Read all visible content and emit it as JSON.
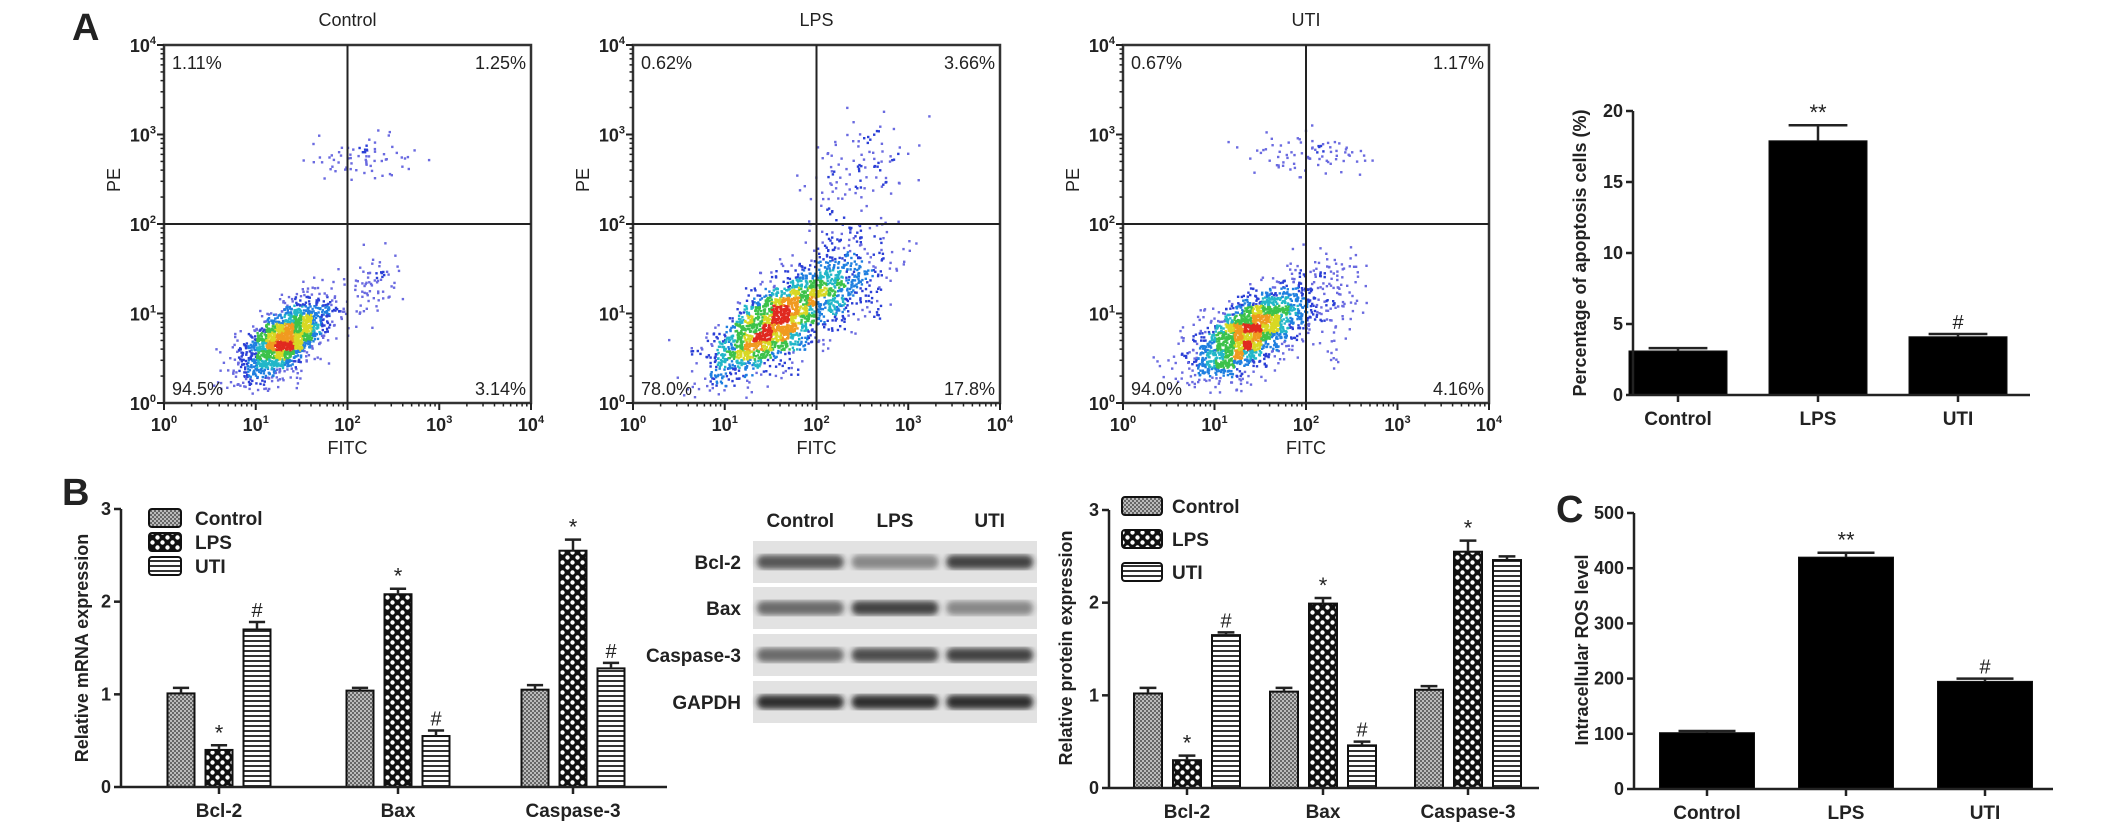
{
  "panel_labels": {
    "a": "A",
    "b": "B",
    "c": "C"
  },
  "colors": {
    "axis": "#222222",
    "bar": "#000000",
    "sparse_dot": "#6a6ae0"
  },
  "chart_data": [
    {
      "type": "scatter",
      "title": "Control",
      "xlabel": "FITC",
      "ylabel": "PE",
      "scale": "log10",
      "xlim_exp": [
        0,
        4
      ],
      "ylim_exp": [
        0,
        4
      ],
      "tick_base": "10",
      "tick_exponents": [
        "0",
        "1",
        "2",
        "3",
        "4"
      ],
      "gate_exp": [
        2,
        2
      ],
      "quadrants": {
        "upper_left": "1.11%",
        "upper_right": "1.25%",
        "lower_left": "94.5%",
        "lower_right": "3.14%"
      },
      "populations": [
        {
          "center": [
            1.3,
            0.72
          ],
          "sd": [
            0.24,
            0.22
          ],
          "rho": 0.6,
          "n": 1700
        },
        {
          "center": [
            2.3,
            1.3
          ],
          "sd": [
            0.15,
            0.2
          ],
          "rho": 0.2,
          "n": 70
        },
        {
          "center": [
            2.1,
            2.75
          ],
          "sd": [
            0.3,
            0.12
          ],
          "rho": 0,
          "n": 70
        }
      ]
    },
    {
      "type": "scatter",
      "title": "LPS",
      "xlabel": "FITC",
      "ylabel": "PE",
      "scale": "log10",
      "xlim_exp": [
        0,
        4
      ],
      "ylim_exp": [
        0,
        4
      ],
      "tick_base": "10",
      "tick_exponents": [
        "0",
        "1",
        "2",
        "3",
        "4"
      ],
      "gate_exp": [
        2,
        2
      ],
      "quadrants": {
        "upper_left": "0.62%",
        "upper_right": "3.66%",
        "lower_left": "78.0%",
        "lower_right": "17.8%"
      },
      "populations": [
        {
          "center": [
            1.55,
            0.9
          ],
          "sd": [
            0.36,
            0.3
          ],
          "rho": 0.7,
          "n": 1900
        },
        {
          "center": [
            2.3,
            1.4
          ],
          "sd": [
            0.25,
            0.3
          ],
          "rho": 0.3,
          "n": 320
        },
        {
          "center": [
            2.45,
            2.6
          ],
          "sd": [
            0.3,
            0.3
          ],
          "rho": 0.3,
          "n": 110
        }
      ]
    },
    {
      "type": "scatter",
      "title": "UTI",
      "xlabel": "FITC",
      "ylabel": "PE",
      "scale": "log10",
      "xlim_exp": [
        0,
        4
      ],
      "ylim_exp": [
        0,
        4
      ],
      "tick_base": "10",
      "tick_exponents": [
        "0",
        "1",
        "2",
        "3",
        "4"
      ],
      "gate_exp": [
        2,
        2
      ],
      "quadrants": {
        "upper_left": "0.67%",
        "upper_right": "1.17%",
        "lower_left": "94.0%",
        "lower_right": "4.16%"
      },
      "populations": [
        {
          "center": [
            1.4,
            0.82
          ],
          "sd": [
            0.32,
            0.26
          ],
          "rho": 0.65,
          "n": 1900
        },
        {
          "center": [
            2.35,
            1.2
          ],
          "sd": [
            0.15,
            0.3
          ],
          "rho": 0.2,
          "n": 90
        },
        {
          "center": [
            2.05,
            2.8
          ],
          "sd": [
            0.33,
            0.12
          ],
          "rho": 0,
          "n": 80
        }
      ]
    },
    {
      "type": "bar",
      "categories": [
        "Control",
        "LPS",
        "UTI"
      ],
      "values": [
        3.1,
        17.9,
        4.1
      ],
      "errors": [
        0.2,
        1.1,
        0.2
      ],
      "annotations": [
        "",
        "**",
        "#"
      ],
      "xlabel": "",
      "ylabel": "Percentage of apoptosis cells (%)",
      "ylim": [
        0,
        20
      ],
      "yticks": [
        "0",
        "5",
        "10",
        "15",
        "20"
      ]
    },
    {
      "type": "bar",
      "categories": [
        "Bcl-2",
        "Bax",
        "Caspase-3"
      ],
      "xlabel": "",
      "ylabel": "Relative mRNA expression",
      "ylim": [
        0,
        3
      ],
      "yticks": [
        "0",
        "1",
        "2",
        "3"
      ],
      "legend": "top-left",
      "series": [
        {
          "name": "Control",
          "values": [
            1.01,
            1.04,
            1.05
          ],
          "errors": [
            0.06,
            0.03,
            0.05
          ],
          "annotations": [
            "",
            "",
            ""
          ]
        },
        {
          "name": "LPS",
          "values": [
            0.4,
            2.08,
            2.55
          ],
          "errors": [
            0.05,
            0.06,
            0.12
          ],
          "annotations": [
            "*",
            "*",
            "*"
          ]
        },
        {
          "name": "UTI",
          "values": [
            1.7,
            0.55,
            1.28
          ],
          "errors": [
            0.08,
            0.06,
            0.06
          ],
          "annotations": [
            "#",
            "#",
            "#"
          ]
        }
      ]
    },
    {
      "type": "bar",
      "categories": [
        "Bcl-2",
        "Bax",
        "Caspase-3"
      ],
      "xlabel": "",
      "ylabel": "Relative protein expression",
      "ylim": [
        0,
        3
      ],
      "yticks": [
        "0",
        "1",
        "2",
        "3"
      ],
      "legend": "top-left",
      "series": [
        {
          "name": "Control",
          "values": [
            1.02,
            1.04,
            1.06
          ],
          "errors": [
            0.06,
            0.04,
            0.04
          ],
          "annotations": [
            "",
            "",
            ""
          ]
        },
        {
          "name": "LPS",
          "values": [
            0.3,
            1.99,
            2.55
          ],
          "errors": [
            0.05,
            0.06,
            0.12
          ],
          "annotations": [
            "*",
            "*",
            "*"
          ]
        },
        {
          "name": "UTI",
          "values": [
            1.65,
            0.46,
            2.46
          ],
          "errors": [
            0.03,
            0.04,
            0.04
          ],
          "annotations": [
            "#",
            "#",
            ""
          ]
        }
      ]
    },
    {
      "type": "bar",
      "categories": [
        "Control",
        "LPS",
        "UTI"
      ],
      "values": [
        102,
        420,
        195
      ],
      "errors": [
        3,
        8,
        5
      ],
      "annotations": [
        "",
        "**",
        "#"
      ],
      "xlabel": "",
      "ylabel": "Intracellular ROS level",
      "ylim": [
        0,
        500
      ],
      "yticks": [
        "0",
        "100",
        "200",
        "300",
        "400",
        "500"
      ]
    }
  ],
  "western_blot": {
    "columns": [
      "Control",
      "LPS",
      "UTI"
    ],
    "rows": [
      {
        "label": "Bcl-2",
        "intensity": [
          0.7,
          0.45,
          0.8
        ]
      },
      {
        "label": "Bax",
        "intensity": [
          0.6,
          0.8,
          0.45
        ]
      },
      {
        "label": "Caspase-3",
        "intensity": [
          0.6,
          0.75,
          0.8
        ]
      },
      {
        "label": "GAPDH",
        "intensity": [
          0.9,
          0.9,
          0.9
        ]
      }
    ]
  }
}
